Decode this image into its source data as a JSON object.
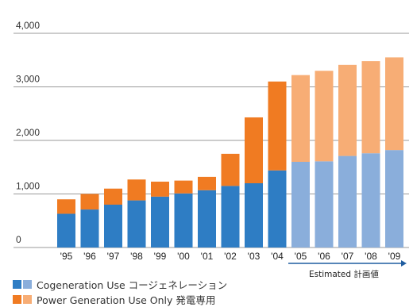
{
  "chart_data": {
    "type": "bar",
    "stacked": true,
    "categories": [
      "'95",
      "'96",
      "'97",
      "'98",
      "'99",
      "'00",
      "'01",
      "'02",
      "'03",
      "'04",
      "'05",
      "'06",
      "'07",
      "'08",
      "'09"
    ],
    "series": [
      {
        "name": "Cogeneration Use コージェネレーション",
        "values": [
          630,
          710,
          800,
          880,
          950,
          1010,
          1070,
          1150,
          1200,
          1440,
          1600,
          1610,
          1710,
          1760,
          1820
        ]
      },
      {
        "name": "Power Generation Use Only 発電専用",
        "values": [
          270,
          290,
          300,
          390,
          280,
          240,
          250,
          600,
          1230,
          1660,
          1620,
          1690,
          1700,
          1720,
          1730
        ]
      }
    ],
    "estimated_from": "'05",
    "estimated_label": "Estimated 計画値",
    "yticks": [
      "0",
      "1,000",
      "2,000",
      "3,000",
      "4,000"
    ],
    "ylim": [
      0,
      4000
    ],
    "grid": true,
    "legend_position": "bottom-left",
    "colors": {
      "cogeneration": "#2e7dc4",
      "cogeneration_estimated": "#8aaedb",
      "power_only": "#f07b22",
      "power_only_estimated": "#f7ad75",
      "grid": "#999999",
      "arrow": "#1f5da0"
    }
  }
}
